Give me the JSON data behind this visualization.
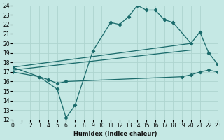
{
  "xlabel": "Humidex (Indice chaleur)",
  "xlim": [
    0,
    23
  ],
  "ylim": [
    12,
    24
  ],
  "yticks": [
    12,
    13,
    14,
    15,
    16,
    17,
    18,
    19,
    20,
    21,
    22,
    23,
    24
  ],
  "xticks": [
    0,
    1,
    2,
    3,
    4,
    5,
    6,
    7,
    8,
    9,
    10,
    11,
    12,
    13,
    14,
    15,
    16,
    17,
    18,
    19,
    20,
    21,
    22,
    23
  ],
  "bg_color": "#c5e8e4",
  "grid_color": "#aed4cf",
  "line_color": "#1a6b6b",
  "line1_x": [
    0,
    3,
    5,
    6,
    7,
    9,
    11,
    12,
    13,
    14,
    15,
    16,
    17,
    18,
    20,
    21,
    22,
    23
  ],
  "line1_y": [
    17.0,
    16.5,
    15.2,
    12.2,
    13.5,
    19.2,
    22.2,
    22.0,
    22.8,
    24.0,
    23.5,
    23.5,
    22.5,
    22.2,
    20.0,
    21.2,
    19.0,
    17.8
  ],
  "line2_x": [
    0,
    3,
    4,
    5,
    6,
    19,
    20,
    21,
    22,
    23
  ],
  "line2_y": [
    17.5,
    16.5,
    16.2,
    15.8,
    16.0,
    16.5,
    16.7,
    17.0,
    17.2,
    17.0
  ],
  "line3_x": [
    0,
    20
  ],
  "line3_y": [
    17.5,
    20.0
  ],
  "line4_x": [
    0,
    20
  ],
  "line4_y": [
    17.2,
    19.3
  ]
}
